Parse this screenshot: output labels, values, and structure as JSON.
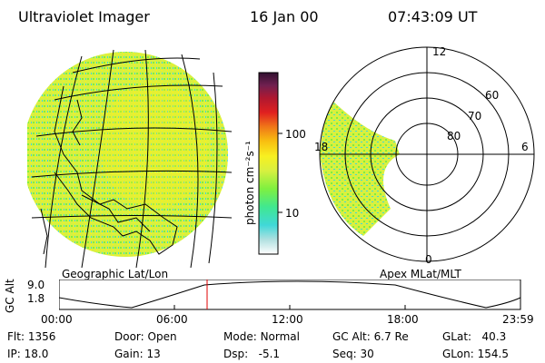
{
  "header": {
    "title": "Ultraviolet Imager",
    "date": "16 Jan 00",
    "time": "07:43:09 UT"
  },
  "geo_panel": {
    "caption": "Geographic Lat/Lon"
  },
  "colorbar": {
    "unit_label": "photon cm⁻²s⁻¹",
    "ticks": [
      "100",
      "10"
    ]
  },
  "apex_panel": {
    "caption": "Apex MLat/MLT",
    "mlt_labels": [
      "12",
      "18",
      "6",
      "0"
    ],
    "lat_labels": [
      "60",
      "70",
      "80"
    ]
  },
  "orbit_plot": {
    "ylabel": "GC Alt",
    "yticks": [
      "9.0",
      "1.8"
    ],
    "xticks": [
      "00:00",
      "06:00",
      "12:00",
      "18:00",
      "23:59"
    ],
    "current_time_marker": "07:43"
  },
  "info": {
    "flt_label": "Flt:",
    "flt_value": "1356",
    "ip_label": "IP:",
    "ip_value": "18.0",
    "door_label": "Door:",
    "door_value": "Open",
    "gain_label": "Gain:",
    "gain_value": "13",
    "mode_label": "Mode:",
    "mode_value": "Normal",
    "dsp_label": "Dsp:",
    "dsp_value": "-5.1",
    "gcalt_label": "GC Alt:",
    "gcalt_value": "6.7 Re",
    "seq_label": "Seq:",
    "seq_value": "30",
    "glat_label": "GLat:",
    "glat_value": "40.3",
    "glon_label": "GLon:",
    "glon_value": "154.5"
  },
  "colors": {
    "colorbar_stops": [
      "#ffffff",
      "#b0e0e0",
      "#40d8d8",
      "#40e890",
      "#7ff040",
      "#d8f040",
      "#f8f020",
      "#f8c010",
      "#f07818",
      "#e02020",
      "#b01830",
      "#702050",
      "#301030"
    ]
  }
}
